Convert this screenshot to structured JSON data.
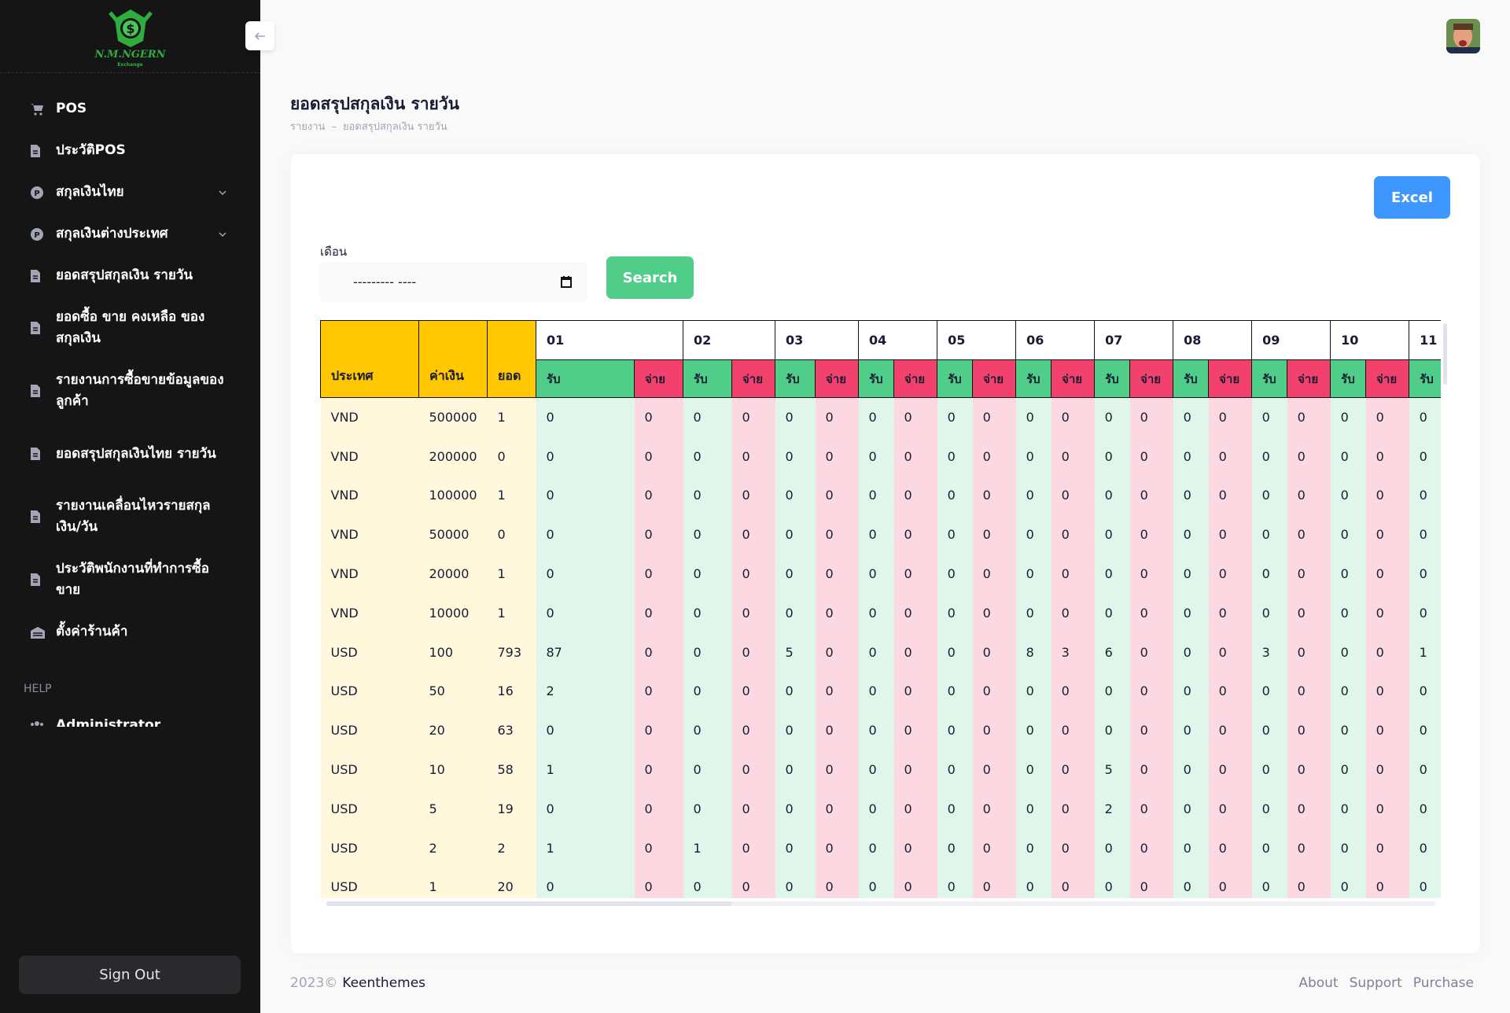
{
  "sidebar": {
    "logo": {
      "name": "N.M.NGERN",
      "tagline": "Exchange"
    },
    "menu": [
      {
        "label": "POS"
      },
      {
        "label": "ประวัติPOS"
      },
      {
        "label": "สกุลเงินไทย",
        "submenu": true
      },
      {
        "label": "สกุลเงินต่างประเทศ",
        "submenu": true
      },
      {
        "label": "ยอดสรุปสกุลเงิน รายวัน"
      },
      {
        "label": "ยอดซื้อ ขาย คงเหลือ ของสกุลเงิน"
      },
      {
        "label": "รายงานการซื้อขายข้อมูลของลูกค้า"
      },
      {
        "label": "ยอดสรุปสกุลเงินไทย รายวัน"
      },
      {
        "label": "รายงานเคลื่อนไหวรายสกุลเงิน/วัน"
      },
      {
        "label": "ประวัติพนักงานที่ทำการซื้อขาย"
      },
      {
        "label": "ตั้งค่าร้านค้า"
      }
    ],
    "help_label": "HELP",
    "help_item": "Administrator",
    "sign_out": "Sign Out"
  },
  "header": {
    "title": "ยอดสรุปสกุลเงิน รายวัน",
    "breadcrumb": [
      "รายงาน",
      "ยอดสรุปสกุลเงิน รายวัน"
    ],
    "breadcrumb_separator": "–"
  },
  "toolbar": {
    "excel": "Excel",
    "month_label": "เดือน",
    "month_placeholder": "--------- ----",
    "search": "Search"
  },
  "table": {
    "headers": [
      "ประเทศ",
      "ค่าเงิน",
      "ยอด"
    ],
    "days": [
      "01",
      "02",
      "03",
      "04",
      "05",
      "06",
      "07",
      "08",
      "09",
      "10",
      "11"
    ],
    "receive": "รับ",
    "pay": "จ่าย",
    "rows": [
      [
        "VND",
        500000,
        1,
        0,
        0,
        0,
        0,
        0,
        0,
        0,
        0,
        0,
        0,
        0,
        0,
        0,
        0,
        0,
        0,
        0,
        0,
        0,
        0,
        0
      ],
      [
        "VND",
        200000,
        0,
        0,
        0,
        0,
        0,
        0,
        0,
        0,
        0,
        0,
        0,
        0,
        0,
        0,
        0,
        0,
        0,
        0,
        0,
        0,
        0,
        0
      ],
      [
        "VND",
        100000,
        1,
        0,
        0,
        0,
        0,
        0,
        0,
        0,
        0,
        0,
        0,
        0,
        0,
        0,
        0,
        0,
        0,
        0,
        0,
        0,
        0,
        0
      ],
      [
        "VND",
        50000,
        0,
        0,
        0,
        0,
        0,
        0,
        0,
        0,
        0,
        0,
        0,
        0,
        0,
        0,
        0,
        0,
        0,
        0,
        0,
        0,
        0,
        0
      ],
      [
        "VND",
        20000,
        1,
        0,
        0,
        0,
        0,
        0,
        0,
        0,
        0,
        0,
        0,
        0,
        0,
        0,
        0,
        0,
        0,
        0,
        0,
        0,
        0,
        0
      ],
      [
        "VND",
        10000,
        1,
        0,
        0,
        0,
        0,
        0,
        0,
        0,
        0,
        0,
        0,
        0,
        0,
        0,
        0,
        0,
        0,
        0,
        0,
        0,
        0,
        0
      ],
      [
        "USD",
        100,
        793,
        87,
        0,
        0,
        0,
        5,
        0,
        0,
        0,
        0,
        0,
        8,
        3,
        6,
        0,
        0,
        0,
        3,
        0,
        0,
        0,
        1
      ],
      [
        "USD",
        50,
        16,
        2,
        0,
        0,
        0,
        0,
        0,
        0,
        0,
        0,
        0,
        0,
        0,
        0,
        0,
        0,
        0,
        0,
        0,
        0,
        0,
        0
      ],
      [
        "USD",
        20,
        63,
        0,
        0,
        0,
        0,
        0,
        0,
        0,
        0,
        0,
        0,
        0,
        0,
        0,
        0,
        0,
        0,
        0,
        0,
        0,
        0,
        0
      ],
      [
        "USD",
        10,
        58,
        1,
        0,
        0,
        0,
        0,
        0,
        0,
        0,
        0,
        0,
        0,
        0,
        5,
        0,
        0,
        0,
        0,
        0,
        0,
        0,
        0
      ],
      [
        "USD",
        5,
        19,
        0,
        0,
        0,
        0,
        0,
        0,
        0,
        0,
        0,
        0,
        0,
        0,
        2,
        0,
        0,
        0,
        0,
        0,
        0,
        0,
        0
      ],
      [
        "USD",
        2,
        2,
        1,
        0,
        1,
        0,
        0,
        0,
        0,
        0,
        0,
        0,
        0,
        0,
        0,
        0,
        0,
        0,
        0,
        0,
        0,
        0,
        0
      ],
      [
        "USD",
        1,
        20,
        0,
        0,
        0,
        0,
        0,
        0,
        0,
        0,
        0,
        0,
        0,
        0,
        0,
        0,
        0,
        0,
        0,
        0,
        0,
        0,
        0
      ]
    ]
  },
  "footer": {
    "year": "2023©",
    "brand": "Keenthemes",
    "links": [
      "About",
      "Support",
      "Purchase"
    ]
  }
}
